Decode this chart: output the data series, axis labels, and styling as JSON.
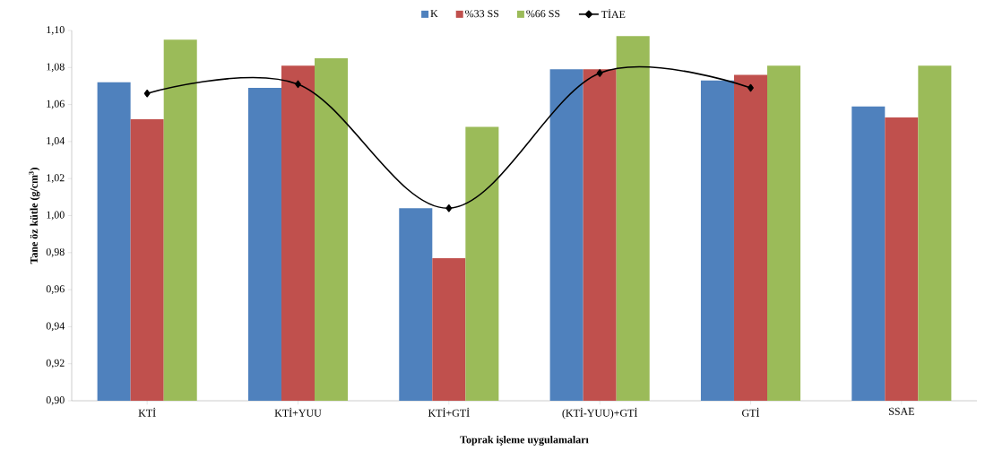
{
  "chart_data": {
    "type": "bar",
    "xlabel": "Toprak işleme uygulamaları",
    "ylabel": "Tane öz kütle (g/cm$^{3}$)",
    "categories": [
      "KTİ",
      "KTİ+YUU",
      "KTİ+GTİ",
      "(KTİ-YUU)+GTİ",
      "GTİ",
      "SSAE"
    ],
    "series": [
      {
        "name": "K",
        "color": "#4f81bd",
        "values": [
          1.072,
          1.069,
          1.004,
          1.079,
          1.073,
          1.059
        ]
      },
      {
        "name": "%33 SS",
        "color": "#c0504d",
        "values": [
          1.052,
          1.081,
          0.977,
          1.079,
          1.076,
          1.053
        ]
      },
      {
        "name": "%66 SS",
        "color": "#9bbb59",
        "values": [
          1.095,
          1.085,
          1.048,
          1.097,
          1.081,
          1.081
        ]
      },
      {
        "name": "TİAE",
        "type": "line",
        "color": "#000000",
        "marker": "diamond",
        "line_style": "solid",
        "values": [
          1.066,
          1.071,
          1.004,
          1.077,
          1.069,
          null
        ]
      }
    ],
    "ylim": [
      0.9,
      1.1
    ],
    "yticks": [
      {
        "value": 0.9,
        "label": "0,90"
      },
      {
        "value": 0.92,
        "label": "0,92"
      },
      {
        "value": 0.94,
        "label": "0,94"
      },
      {
        "value": 0.96,
        "label": "0,96"
      },
      {
        "value": 0.98,
        "label": "0,98"
      },
      {
        "value": 1.0,
        "label": "1,00"
      },
      {
        "value": 1.02,
        "label": "1,02"
      },
      {
        "value": 1.04,
        "label": "1,04"
      },
      {
        "value": 1.06,
        "label": "1,06"
      },
      {
        "value": 1.08,
        "label": "1,08"
      },
      {
        "value": 1.1,
        "label": "1,10"
      }
    ],
    "grid": false,
    "legend": "top"
  }
}
